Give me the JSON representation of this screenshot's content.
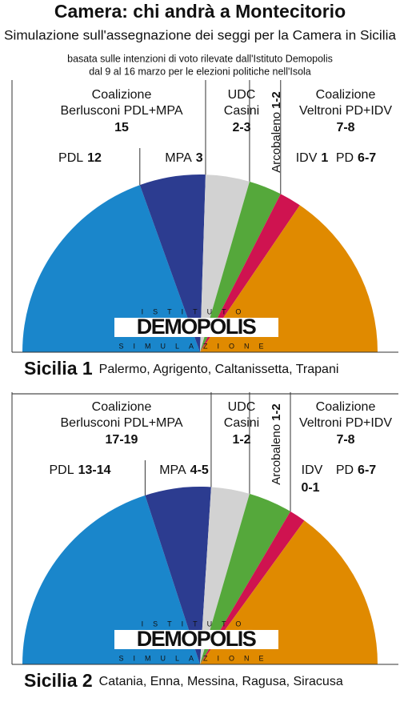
{
  "header": {
    "title": "Camera: chi andrà a Montecitorio",
    "subtitle": "Simulazione sull'assegnazione dei seggi per la Camera in Sicilia",
    "note": [
      "basata sulle intenzioni di voto rilevate dall'Istituto Demopolis",
      "dal 9 al 16 marzo per le elezioni politiche nell'Isola"
    ],
    "watermark": {
      "top": "ISTITUTO",
      "brand": "DEMOPOLIS",
      "bottom": "SIMULAZIONE"
    }
  },
  "chart_data": [
    {
      "type": "pie",
      "title": "Sicilia 1",
      "subtitle": "Palermo, Agrigento, Caltanissetta, Trapani",
      "groups": [
        {
          "lines": [
            "Coalizione",
            "Berlusconi PDL+MPA"
          ],
          "seats": "15"
        },
        {
          "lines": [
            "UDC",
            "Casini"
          ],
          "seats": "2-3"
        },
        {
          "lines": [
            "Coalizione",
            "Veltroni PD+IDV"
          ],
          "seats": "7-8"
        }
      ],
      "categories": [
        "PDL",
        "MPA",
        null,
        "Arcobaleno",
        "IDV",
        "PD"
      ],
      "seat_labels": [
        "12",
        "3",
        null,
        "1-2",
        "1",
        "6-7"
      ],
      "values": [
        39,
        12,
        8,
        6,
        4,
        31
      ],
      "colors": [
        "#1a86cb",
        "#2c3c90",
        "#d2d2d2",
        "#55a83b",
        "#cf1350",
        "#e08a00"
      ]
    },
    {
      "type": "pie",
      "title": "Sicilia 2",
      "subtitle": "Catania, Enna, Messina, Ragusa, Siracusa",
      "groups": [
        {
          "lines": [
            "Coalizione",
            "Berlusconi PDL+MPA"
          ],
          "seats": "17-19"
        },
        {
          "lines": [
            "UDC",
            "Casini"
          ],
          "seats": "1-2"
        },
        {
          "lines": [
            "Coalizione",
            "Veltroni PD+IDV"
          ],
          "seats": "7-8"
        }
      ],
      "categories": [
        "PDL",
        "MPA",
        null,
        "Arcobaleno",
        "IDV",
        "PD"
      ],
      "seat_labels": [
        "13-14",
        "4-5",
        null,
        "1-2",
        "0-1",
        "6-7"
      ],
      "values": [
        40,
        12,
        7,
        8,
        3,
        30
      ],
      "colors": [
        "#1a86cb",
        "#2c3c90",
        "#d2d2d2",
        "#55a83b",
        "#cf1350",
        "#e08a00"
      ]
    }
  ]
}
